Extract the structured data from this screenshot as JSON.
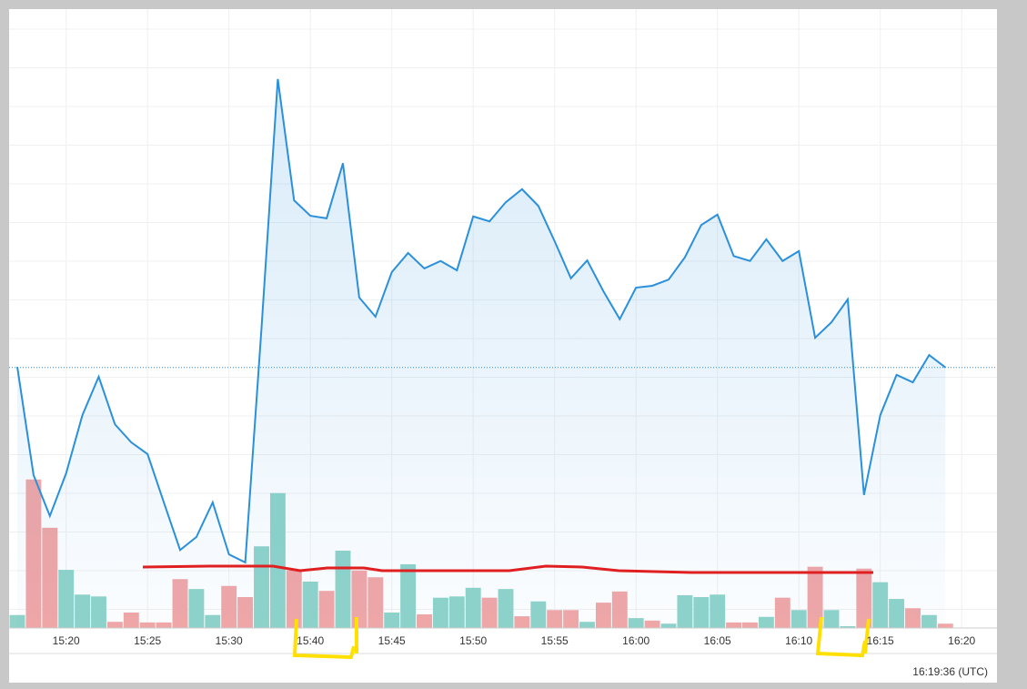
{
  "chart_data": {
    "type": "line",
    "categories": [
      null,
      null,
      null,
      "15:20",
      null,
      null,
      null,
      null,
      "15:25",
      null,
      null,
      null,
      null,
      "15:30",
      null,
      null,
      null,
      null,
      "15:40",
      null,
      null,
      null,
      null,
      "15:45",
      null,
      null,
      null,
      null,
      "15:50",
      null,
      null,
      null,
      null,
      "15:55",
      null,
      null,
      null,
      null,
      "16:00",
      null,
      null,
      null,
      null,
      "16:05",
      null,
      null,
      null,
      null,
      "16:10",
      null,
      null,
      null,
      null,
      "16:15",
      null,
      null,
      null,
      null,
      "16:20"
    ],
    "ylim": [
      0,
      100
    ],
    "series": [
      {
        "type": "line",
        "color": "#2a90dc",
        "values": [
          42.2,
          24.7,
          18.1,
          25.0,
          34.4,
          40.6,
          32.9,
          30.0,
          28.1,
          20.3,
          12.6,
          14.7,
          20.3,
          11.9,
          10.6,
          48.5,
          88.7,
          69.1,
          66.6,
          66.2,
          75.1,
          53.4,
          50.3,
          57.5,
          60.6,
          58.1,
          59.3,
          57.8,
          66.5,
          65.7,
          68.8,
          70.9,
          68.2,
          62.5,
          56.5,
          59.4,
          54.4,
          49.9,
          55.0,
          55.3,
          56.3,
          59.9,
          65.1,
          66.8,
          60.1,
          59.3,
          62.8,
          59.3,
          60.9,
          46.9,
          49.4,
          53.1,
          21.5,
          34.4,
          40.9,
          39.7,
          44.1,
          42.1,
          null
        ]
      },
      {
        "type": "bar",
        "colors": [
          "#8fd3c9",
          "#f2a6a6",
          "#f2a6a6",
          "#8fd3c9",
          "#8fd3c9",
          "#8fd3c9",
          "#f2a6a6",
          "#f2a6a6",
          "#f2a6a6",
          "#f2a6a6",
          "#f2a6a6",
          "#8fd3c9",
          "#8fd3c9",
          "#f2a6a6",
          "#f2a6a6",
          "#8fd3c9",
          "#8fd3c9",
          "#f2a6a6",
          "#8fd3c9",
          "#f2a6a6",
          "#8fd3c9",
          "#f2a6a6",
          "#f2a6a6",
          "#8fd3c9",
          "#8fd3c9",
          "#f2a6a6",
          "#8fd3c9",
          "#8fd3c9",
          "#8fd3c9",
          "#f2a6a6",
          "#8fd3c9",
          "#f2a6a6",
          "#8fd3c9",
          "#f2a6a6",
          "#f2a6a6",
          "#8fd3c9",
          "#f2a6a6",
          "#f2a6a6",
          "#8fd3c9",
          "#f2a6a6",
          "#8fd3c9",
          "#8fd3c9",
          "#8fd3c9",
          "#8fd3c9",
          "#f2a6a6",
          "#f2a6a6",
          "#8fd3c9",
          "#f2a6a6",
          "#8fd3c9",
          "#f2a6a6",
          "#8fd3c9",
          "#8fd3c9",
          "#f2a6a6",
          "#8fd3c9",
          "#8fd3c9",
          "#f2a6a6",
          "#8fd3c9",
          "#f2a6a6",
          null
        ],
        "values": [
          2.1,
          24.0,
          16.2,
          9.4,
          5.4,
          5.1,
          1.0,
          2.5,
          0.9,
          0.9,
          7.9,
          6.3,
          2.1,
          6.8,
          5.0,
          13.2,
          21.8,
          9.3,
          7.5,
          6.0,
          12.5,
          9.3,
          8.2,
          2.5,
          10.3,
          2.2,
          4.9,
          5.1,
          6.5,
          4.9,
          6.3,
          1.9,
          4.3,
          2.9,
          2.9,
          1.0,
          4.1,
          5.9,
          1.6,
          1.2,
          0.7,
          5.3,
          5.0,
          5.4,
          0.9,
          0.9,
          1.8,
          4.9,
          2.9,
          9.9,
          2.9,
          0.3,
          9.6,
          7.4,
          4.7,
          3.2,
          2.1,
          0.7,
          null
        ]
      }
    ],
    "grid": true,
    "footer": "16:19:36 (UTC)"
  }
}
